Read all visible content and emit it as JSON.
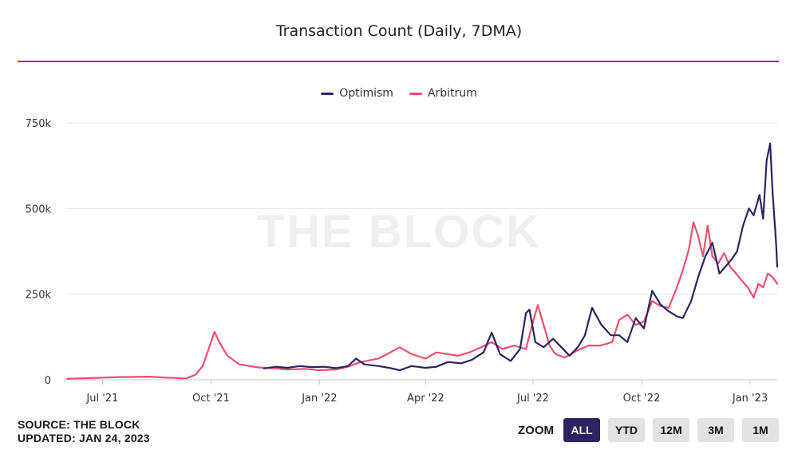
{
  "colors": {
    "optimism": "#2b2460",
    "arbitrum": "#ef4f6e",
    "accent": "#8a2be2"
  },
  "footer": {
    "source": "SOURCE: THE BLOCK",
    "updated": "UPDATED: JAN 24, 2023"
  },
  "zoom": {
    "label": "ZOOM",
    "buttons": [
      "ALL",
      "YTD",
      "12M",
      "3M",
      "1M"
    ],
    "active": "ALL"
  },
  "chart_data": {
    "type": "line",
    "title": "Transaction Count (Daily, 7DMA)",
    "watermark": "THE BLOCK",
    "xlabel": "",
    "ylabel": "",
    "x_ticks": [
      "Jul '21",
      "Oct '21",
      "Jan '22",
      "Apr '22",
      "Jul '22",
      "Oct '22",
      "Jan '23"
    ],
    "y_ticks": [
      "0",
      "250k",
      "500k",
      "750k"
    ],
    "ylim": [
      0,
      750000
    ],
    "xlim": [
      "2021-06-01",
      "2023-01-24"
    ],
    "grid": true,
    "legend_position": "top-center",
    "series": [
      {
        "name": "Optimism",
        "color": "#2b2460",
        "points": [
          [
            "2021-11-15",
            33000
          ],
          [
            "2021-11-25",
            38000
          ],
          [
            "2021-12-05",
            35000
          ],
          [
            "2021-12-15",
            40000
          ],
          [
            "2021-12-25",
            37000
          ],
          [
            "2022-01-05",
            38000
          ],
          [
            "2022-01-15",
            34000
          ],
          [
            "2022-01-25",
            40000
          ],
          [
            "2022-02-01",
            62000
          ],
          [
            "2022-02-08",
            45000
          ],
          [
            "2022-02-20",
            40000
          ],
          [
            "2022-03-01",
            35000
          ],
          [
            "2022-03-10",
            28000
          ],
          [
            "2022-03-20",
            40000
          ],
          [
            "2022-04-01",
            35000
          ],
          [
            "2022-04-10",
            38000
          ],
          [
            "2022-04-20",
            52000
          ],
          [
            "2022-05-01",
            48000
          ],
          [
            "2022-05-10",
            58000
          ],
          [
            "2022-05-20",
            80000
          ],
          [
            "2022-05-27",
            138000
          ],
          [
            "2022-06-03",
            75000
          ],
          [
            "2022-06-12",
            55000
          ],
          [
            "2022-06-20",
            90000
          ],
          [
            "2022-06-25",
            195000
          ],
          [
            "2022-06-28",
            205000
          ],
          [
            "2022-07-03",
            110000
          ],
          [
            "2022-07-10",
            95000
          ],
          [
            "2022-07-18",
            120000
          ],
          [
            "2022-07-25",
            95000
          ],
          [
            "2022-08-01",
            70000
          ],
          [
            "2022-08-08",
            95000
          ],
          [
            "2022-08-14",
            130000
          ],
          [
            "2022-08-20",
            210000
          ],
          [
            "2022-08-28",
            160000
          ],
          [
            "2022-09-05",
            130000
          ],
          [
            "2022-09-12",
            130000
          ],
          [
            "2022-09-19",
            110000
          ],
          [
            "2022-09-26",
            180000
          ],
          [
            "2022-10-03",
            150000
          ],
          [
            "2022-10-10",
            260000
          ],
          [
            "2022-10-17",
            220000
          ],
          [
            "2022-10-24",
            200000
          ],
          [
            "2022-10-31",
            185000
          ],
          [
            "2022-11-05",
            180000
          ],
          [
            "2022-11-12",
            230000
          ],
          [
            "2022-11-18",
            300000
          ],
          [
            "2022-11-24",
            360000
          ],
          [
            "2022-11-30",
            400000
          ],
          [
            "2022-12-06",
            310000
          ],
          [
            "2022-12-11",
            330000
          ],
          [
            "2022-12-16",
            350000
          ],
          [
            "2022-12-21",
            375000
          ],
          [
            "2022-12-26",
            450000
          ],
          [
            "2022-12-31",
            500000
          ],
          [
            "2023-01-04",
            480000
          ],
          [
            "2023-01-09",
            540000
          ],
          [
            "2023-01-12",
            470000
          ],
          [
            "2023-01-15",
            640000
          ],
          [
            "2023-01-18",
            690000
          ],
          [
            "2023-01-20",
            550000
          ],
          [
            "2023-01-23",
            400000
          ],
          [
            "2023-01-24",
            330000
          ]
        ]
      },
      {
        "name": "Arbitrum",
        "color": "#ef4f6e",
        "points": [
          [
            "2021-06-01",
            3000
          ],
          [
            "2021-06-20",
            5000
          ],
          [
            "2021-07-15",
            8000
          ],
          [
            "2021-08-10",
            9000
          ],
          [
            "2021-08-25",
            6000
          ],
          [
            "2021-09-10",
            4000
          ],
          [
            "2021-09-18",
            15000
          ],
          [
            "2021-09-24",
            40000
          ],
          [
            "2021-09-30",
            100000
          ],
          [
            "2021-10-04",
            140000
          ],
          [
            "2021-10-08",
            110000
          ],
          [
            "2021-10-15",
            70000
          ],
          [
            "2021-10-25",
            45000
          ],
          [
            "2021-11-10",
            36000
          ],
          [
            "2021-11-25",
            33000
          ],
          [
            "2021-12-05",
            30000
          ],
          [
            "2021-12-20",
            32000
          ],
          [
            "2022-01-01",
            28000
          ],
          [
            "2022-01-15",
            30000
          ],
          [
            "2022-01-25",
            38000
          ],
          [
            "2022-02-05",
            52000
          ],
          [
            "2022-02-20",
            62000
          ],
          [
            "2022-03-01",
            78000
          ],
          [
            "2022-03-10",
            95000
          ],
          [
            "2022-03-20",
            75000
          ],
          [
            "2022-04-01",
            62000
          ],
          [
            "2022-04-10",
            80000
          ],
          [
            "2022-04-20",
            75000
          ],
          [
            "2022-04-28",
            70000
          ],
          [
            "2022-05-08",
            80000
          ],
          [
            "2022-05-18",
            95000
          ],
          [
            "2022-05-27",
            110000
          ],
          [
            "2022-06-05",
            90000
          ],
          [
            "2022-06-15",
            100000
          ],
          [
            "2022-06-25",
            90000
          ],
          [
            "2022-07-01",
            170000
          ],
          [
            "2022-07-05",
            218000
          ],
          [
            "2022-07-10",
            160000
          ],
          [
            "2022-07-15",
            100000
          ],
          [
            "2022-07-20",
            75000
          ],
          [
            "2022-07-28",
            65000
          ],
          [
            "2022-08-07",
            85000
          ],
          [
            "2022-08-17",
            100000
          ],
          [
            "2022-08-27",
            100000
          ],
          [
            "2022-09-06",
            110000
          ],
          [
            "2022-09-12",
            175000
          ],
          [
            "2022-09-19",
            190000
          ],
          [
            "2022-09-26",
            160000
          ],
          [
            "2022-10-03",
            170000
          ],
          [
            "2022-10-10",
            230000
          ],
          [
            "2022-10-17",
            215000
          ],
          [
            "2022-10-24",
            210000
          ],
          [
            "2022-10-31",
            270000
          ],
          [
            "2022-11-05",
            320000
          ],
          [
            "2022-11-10",
            380000
          ],
          [
            "2022-11-14",
            460000
          ],
          [
            "2022-11-18",
            420000
          ],
          [
            "2022-11-22",
            360000
          ],
          [
            "2022-11-26",
            450000
          ],
          [
            "2022-11-30",
            360000
          ],
          [
            "2022-12-05",
            340000
          ],
          [
            "2022-12-10",
            370000
          ],
          [
            "2022-12-15",
            330000
          ],
          [
            "2022-12-20",
            310000
          ],
          [
            "2022-12-25",
            290000
          ],
          [
            "2022-12-30",
            270000
          ],
          [
            "2023-01-04",
            240000
          ],
          [
            "2023-01-08",
            280000
          ],
          [
            "2023-01-12",
            270000
          ],
          [
            "2023-01-16",
            310000
          ],
          [
            "2023-01-20",
            300000
          ],
          [
            "2023-01-24",
            280000
          ]
        ]
      }
    ]
  }
}
